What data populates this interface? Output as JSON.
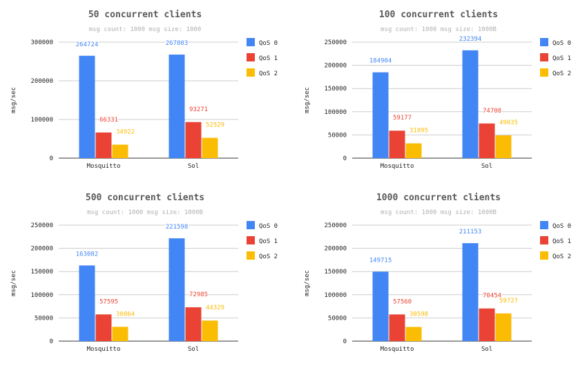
{
  "chart_data": [
    {
      "type": "bar",
      "title": "50 concurrent clients",
      "subtitle": "msg count: 1000  msg size: 1000",
      "xlabel": "",
      "ylabel": "msg/sec",
      "categories": [
        "Mosquitto",
        "Sol"
      ],
      "ylim": [
        0,
        300000
      ],
      "yticks": [
        0,
        100000,
        200000,
        300000
      ],
      "grid": true,
      "legend": "right",
      "series": [
        {
          "name": "QoS 0",
          "color": "#4285f4",
          "values": [
            264724,
            267803
          ],
          "labels": [
            "264724",
            "267803"
          ]
        },
        {
          "name": "QoS 1",
          "color": "#ea4335",
          "values": [
            66331,
            93271
          ],
          "labels": [
            "66331",
            "93271"
          ]
        },
        {
          "name": "QoS 2",
          "color": "#fbbc04",
          "values": [
            34922,
            52529
          ],
          "labels": [
            "34922",
            "52529"
          ]
        }
      ]
    },
    {
      "type": "bar",
      "title": "100 concurrent clients",
      "subtitle": "msg count: 1000  msg size: 1000B",
      "xlabel": "",
      "ylabel": "msg/sec",
      "categories": [
        "Mosquitto",
        "Sol"
      ],
      "ylim": [
        0,
        250000
      ],
      "yticks": [
        0,
        50000,
        100000,
        150000,
        200000,
        250000
      ],
      "grid": true,
      "legend": "right",
      "series": [
        {
          "name": "QoS 0",
          "color": "#4285f4",
          "values": [
            184904,
            232394
          ],
          "labels": [
            "184904",
            "232394"
          ]
        },
        {
          "name": "QoS 1",
          "color": "#ea4335",
          "values": [
            59177,
            74708
          ],
          "labels": [
            "59177",
            "74708"
          ]
        },
        {
          "name": "QoS 2",
          "color": "#fbbc04",
          "values": [
            31895,
            49035
          ],
          "labels": [
            "31895",
            "49035"
          ]
        }
      ]
    },
    {
      "type": "bar",
      "title": "500 concurrent clients",
      "subtitle": "msg count: 1000  msg size: 1000B",
      "xlabel": "",
      "ylabel": "msg/sec",
      "categories": [
        "Mosquitto",
        "Sol"
      ],
      "ylim": [
        0,
        250000
      ],
      "yticks": [
        0,
        50000,
        100000,
        150000,
        200000,
        250000
      ],
      "grid": true,
      "legend": "right",
      "series": [
        {
          "name": "QoS 0",
          "color": "#4285f4",
          "values": [
            163082,
            221598
          ],
          "labels": [
            "163082",
            "221598"
          ]
        },
        {
          "name": "QoS 1",
          "color": "#ea4335",
          "values": [
            57595,
            72985
          ],
          "labels": [
            "57595",
            "72985"
          ]
        },
        {
          "name": "QoS 2",
          "color": "#fbbc04",
          "values": [
            30864,
            44329
          ],
          "labels": [
            "30864",
            "44329"
          ]
        }
      ]
    },
    {
      "type": "bar",
      "title": "1000 concurrent clients",
      "subtitle": "msg count: 1000  msg size: 1000B",
      "xlabel": "",
      "ylabel": "msg/sec",
      "categories": [
        "Mosquitto",
        "Sol"
      ],
      "ylim": [
        0,
        250000
      ],
      "yticks": [
        0,
        50000,
        100000,
        150000,
        200000,
        250000
      ],
      "grid": true,
      "legend": "right",
      "series": [
        {
          "name": "QoS 0",
          "color": "#4285f4",
          "values": [
            149715,
            211153
          ],
          "labels": [
            "149715",
            "211153"
          ]
        },
        {
          "name": "QoS 1",
          "color": "#ea4335",
          "values": [
            57560,
            70454
          ],
          "labels": [
            "57560",
            "70454"
          ]
        },
        {
          "name": "QoS 2",
          "color": "#fbbc04",
          "values": [
            30598,
            59727
          ],
          "labels": [
            "30598",
            "59727"
          ]
        }
      ]
    }
  ]
}
